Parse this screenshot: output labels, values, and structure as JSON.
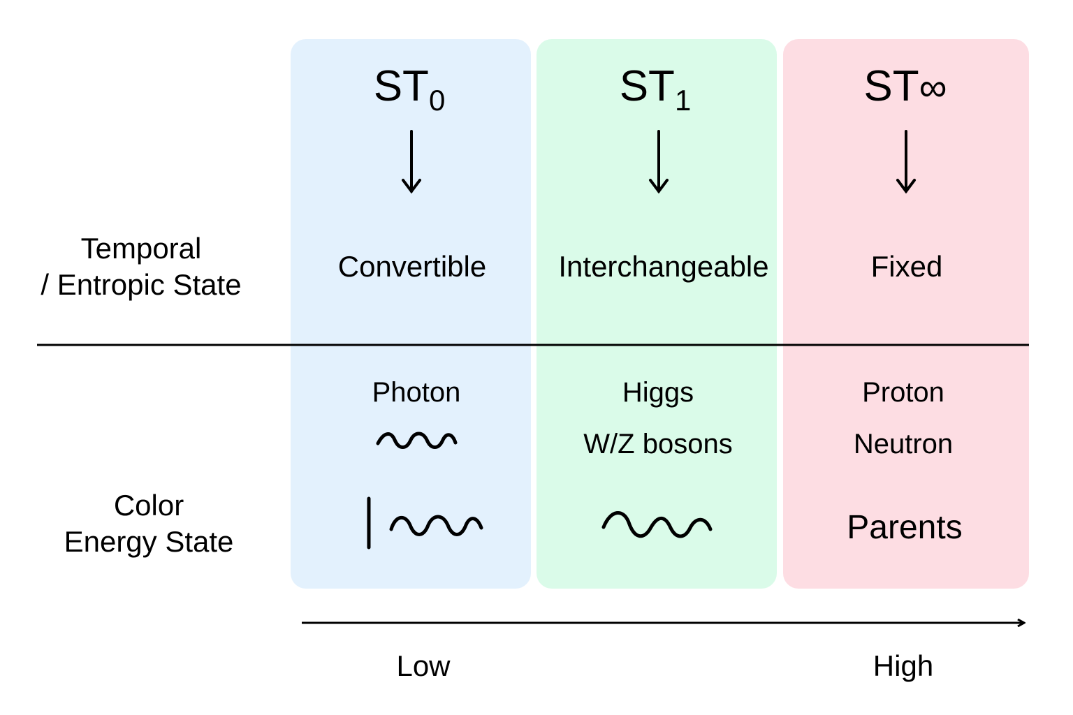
{
  "columns": [
    {
      "symbol": "ST",
      "subscript": "0",
      "state": "Convertible",
      "particles": [
        "Photon"
      ],
      "color": "#e3f1fd"
    },
    {
      "symbol": "ST",
      "subscript": "1",
      "state": "Interchangeable",
      "particles": [
        "Higgs",
        "W/Z bosons"
      ],
      "color": "#dafbe9"
    },
    {
      "symbol": "ST",
      "subscript": "∞",
      "state": "Fixed",
      "particles": [
        "Proton",
        "Neutron",
        "Parents"
      ],
      "color": "#fddde3"
    }
  ],
  "row_labels": {
    "top": [
      "Temporal",
      "/ Entropic State"
    ],
    "bottom": [
      "Color",
      "Energy State"
    ]
  },
  "axis": {
    "low": "Low",
    "high": "High"
  }
}
